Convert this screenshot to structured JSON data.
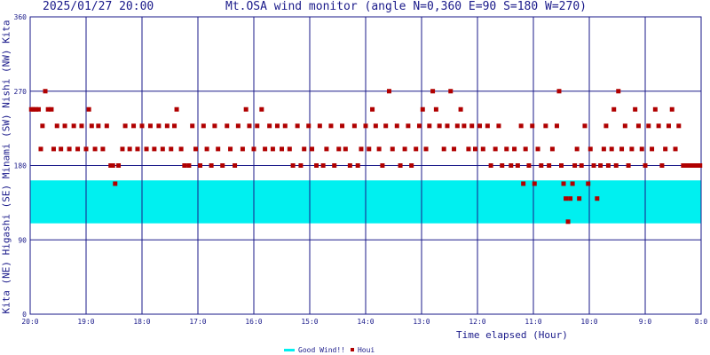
{
  "header": {
    "timestamp": "2025/01/27 20:00",
    "title": "Mt.OSA wind monitor (angle N=0,360 E=90 S=180 W=270)"
  },
  "yaxis_title": "Kita (NE) Higashi (SE) Minami (SW) Nishi (NW) Kita",
  "chart_data": {
    "type": "scatter",
    "xlabel": "Time elapsed (Hour)",
    "ylabel": "Kita (NE) Higashi (SE) Minami (SW) Nishi (NW) Kita",
    "ylim": [
      0,
      360
    ],
    "xlim": [
      0,
      12
    ],
    "x_ticks": [
      0,
      1,
      2,
      3,
      4,
      5,
      6,
      7,
      8,
      9,
      10,
      11,
      12
    ],
    "x_tick_labels": [
      "20:0",
      "19:0",
      "18:0",
      "17:0",
      "16:0",
      "15:0",
      "14:0",
      "13:0",
      "12:0",
      "11:0",
      "10:0",
      "9:0",
      "8:0"
    ],
    "y_ticks": [
      0,
      90,
      180,
      270,
      360
    ],
    "y_tick_labels": [
      "0",
      "90",
      "180",
      "270",
      "360"
    ],
    "grid": true,
    "good_wind_band": {
      "name": "Good Wind!!",
      "from": 110,
      "to": 162,
      "color": "#00f0f0"
    },
    "series": [
      {
        "name": "Houi",
        "color": "#b00000",
        "points": [
          [
            0.02,
            248
          ],
          [
            0.06,
            248
          ],
          [
            0.1,
            248
          ],
          [
            0.15,
            248
          ],
          [
            0.19,
            200
          ],
          [
            0.22,
            228
          ],
          [
            0.27,
            270
          ],
          [
            0.32,
            248
          ],
          [
            0.38,
            248
          ],
          [
            0.42,
            200
          ],
          [
            0.48,
            228
          ],
          [
            0.55,
            200
          ],
          [
            0.62,
            228
          ],
          [
            0.7,
            200
          ],
          [
            0.78,
            228
          ],
          [
            0.85,
            200
          ],
          [
            0.92,
            228
          ],
          [
            1.0,
            200
          ],
          [
            1.05,
            248
          ],
          [
            1.1,
            228
          ],
          [
            1.16,
            200
          ],
          [
            1.22,
            228
          ],
          [
            1.3,
            200
          ],
          [
            1.37,
            228
          ],
          [
            1.44,
            180
          ],
          [
            1.48,
            180
          ],
          [
            1.52,
            158
          ],
          [
            1.58,
            180
          ],
          [
            1.65,
            200
          ],
          [
            1.7,
            228
          ],
          [
            1.78,
            200
          ],
          [
            1.85,
            228
          ],
          [
            1.92,
            200
          ],
          [
            2.0,
            228
          ],
          [
            2.08,
            200
          ],
          [
            2.15,
            228
          ],
          [
            2.22,
            200
          ],
          [
            2.3,
            228
          ],
          [
            2.37,
            200
          ],
          [
            2.45,
            228
          ],
          [
            2.52,
            200
          ],
          [
            2.58,
            228
          ],
          [
            2.62,
            248
          ],
          [
            2.7,
            200
          ],
          [
            2.76,
            180
          ],
          [
            2.84,
            180
          ],
          [
            2.9,
            228
          ],
          [
            2.96,
            200
          ],
          [
            3.04,
            180
          ],
          [
            3.1,
            228
          ],
          [
            3.16,
            200
          ],
          [
            3.24,
            180
          ],
          [
            3.3,
            228
          ],
          [
            3.36,
            200
          ],
          [
            3.44,
            180
          ],
          [
            3.52,
            228
          ],
          [
            3.58,
            200
          ],
          [
            3.66,
            180
          ],
          [
            3.72,
            228
          ],
          [
            3.8,
            200
          ],
          [
            3.86,
            248
          ],
          [
            3.92,
            228
          ],
          [
            4.0,
            200
          ],
          [
            4.06,
            228
          ],
          [
            4.14,
            248
          ],
          [
            4.2,
            200
          ],
          [
            4.28,
            228
          ],
          [
            4.34,
            200
          ],
          [
            4.42,
            228
          ],
          [
            4.5,
            200
          ],
          [
            4.56,
            228
          ],
          [
            4.64,
            200
          ],
          [
            4.7,
            180
          ],
          [
            4.78,
            228
          ],
          [
            4.84,
            180
          ],
          [
            4.9,
            200
          ],
          [
            4.98,
            228
          ],
          [
            5.04,
            200
          ],
          [
            5.12,
            180
          ],
          [
            5.18,
            228
          ],
          [
            5.24,
            180
          ],
          [
            5.3,
            200
          ],
          [
            5.38,
            228
          ],
          [
            5.44,
            180
          ],
          [
            5.52,
            200
          ],
          [
            5.58,
            228
          ],
          [
            5.64,
            200
          ],
          [
            5.72,
            180
          ],
          [
            5.8,
            228
          ],
          [
            5.86,
            180
          ],
          [
            5.92,
            200
          ],
          [
            6.0,
            228
          ],
          [
            6.06,
            200
          ],
          [
            6.12,
            248
          ],
          [
            6.18,
            228
          ],
          [
            6.24,
            200
          ],
          [
            6.3,
            180
          ],
          [
            6.36,
            228
          ],
          [
            6.42,
            270
          ],
          [
            6.48,
            200
          ],
          [
            6.56,
            228
          ],
          [
            6.62,
            180
          ],
          [
            6.7,
            200
          ],
          [
            6.76,
            228
          ],
          [
            6.82,
            180
          ],
          [
            6.9,
            200
          ],
          [
            6.96,
            228
          ],
          [
            7.02,
            248
          ],
          [
            7.08,
            200
          ],
          [
            7.14,
            228
          ],
          [
            7.2,
            270
          ],
          [
            7.26,
            248
          ],
          [
            7.32,
            228
          ],
          [
            7.4,
            200
          ],
          [
            7.46,
            228
          ],
          [
            7.52,
            270
          ],
          [
            7.58,
            200
          ],
          [
            7.64,
            228
          ],
          [
            7.7,
            248
          ],
          [
            7.76,
            228
          ],
          [
            7.84,
            200
          ],
          [
            7.9,
            228
          ],
          [
            7.96,
            200
          ],
          [
            8.04,
            228
          ],
          [
            8.1,
            200
          ],
          [
            8.18,
            228
          ],
          [
            8.24,
            180
          ],
          [
            8.32,
            200
          ],
          [
            8.38,
            228
          ],
          [
            8.44,
            180
          ],
          [
            8.52,
            200
          ],
          [
            8.6,
            180
          ],
          [
            8.66,
            200
          ],
          [
            8.72,
            180
          ],
          [
            8.78,
            228
          ],
          [
            8.82,
            158
          ],
          [
            8.86,
            200
          ],
          [
            8.92,
            180
          ],
          [
            8.98,
            228
          ],
          [
            9.02,
            158
          ],
          [
            9.08,
            200
          ],
          [
            9.14,
            180
          ],
          [
            9.22,
            228
          ],
          [
            9.28,
            180
          ],
          [
            9.34,
            200
          ],
          [
            9.42,
            228
          ],
          [
            9.46,
            270
          ],
          [
            9.5,
            180
          ],
          [
            9.54,
            158
          ],
          [
            9.58,
            140
          ],
          [
            9.62,
            112
          ],
          [
            9.66,
            140
          ],
          [
            9.7,
            158
          ],
          [
            9.74,
            180
          ],
          [
            9.78,
            200
          ],
          [
            9.82,
            140
          ],
          [
            9.86,
            180
          ],
          [
            9.92,
            228
          ],
          [
            9.98,
            158
          ],
          [
            10.02,
            200
          ],
          [
            10.08,
            180
          ],
          [
            10.14,
            140
          ],
          [
            10.2,
            180
          ],
          [
            10.26,
            200
          ],
          [
            10.3,
            228
          ],
          [
            10.34,
            180
          ],
          [
            10.4,
            200
          ],
          [
            10.44,
            248
          ],
          [
            10.48,
            180
          ],
          [
            10.52,
            270
          ],
          [
            10.58,
            200
          ],
          [
            10.64,
            228
          ],
          [
            10.7,
            180
          ],
          [
            10.76,
            200
          ],
          [
            10.82,
            248
          ],
          [
            10.88,
            228
          ],
          [
            10.94,
            200
          ],
          [
            11.0,
            180
          ],
          [
            11.06,
            228
          ],
          [
            11.12,
            200
          ],
          [
            11.18,
            248
          ],
          [
            11.24,
            228
          ],
          [
            11.3,
            180
          ],
          [
            11.36,
            200
          ],
          [
            11.42,
            228
          ],
          [
            11.48,
            248
          ],
          [
            11.54,
            200
          ],
          [
            11.6,
            228
          ],
          [
            11.68,
            180
          ],
          [
            11.74,
            180
          ],
          [
            11.8,
            180
          ],
          [
            11.86,
            180
          ],
          [
            11.92,
            180
          ],
          [
            11.98,
            180
          ]
        ]
      }
    ]
  }
}
